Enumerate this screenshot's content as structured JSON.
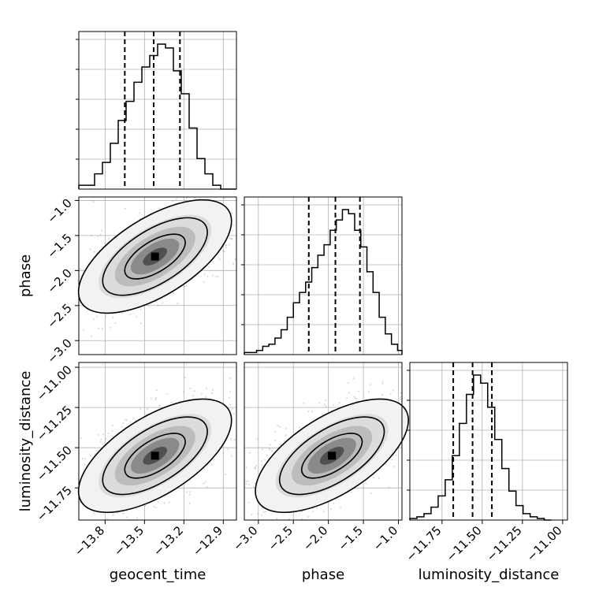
{
  "chart_data": {
    "type": "corner",
    "parameters": [
      {
        "name": "geocent_time",
        "label": "geocent_time",
        "range": [
          -14.0,
          -12.8
        ],
        "ticks": [
          -13.8,
          -13.5,
          -13.2,
          -12.9
        ],
        "tick_labels": [
          "−13.8",
          "−13.5",
          "−13.2",
          "−12.9"
        ],
        "quantiles": [
          -13.65,
          -13.43,
          -13.23
        ],
        "histogram": {
          "bin_edges": [
            -14.0,
            -13.94,
            -13.88,
            -13.82,
            -13.76,
            -13.7,
            -13.64,
            -13.58,
            -13.52,
            -13.46,
            -13.4,
            -13.34,
            -13.28,
            -13.22,
            -13.16,
            -13.1,
            -13.04,
            -12.98,
            -12.92,
            -12.86,
            -12.8
          ],
          "counts": [
            1,
            1,
            4,
            7,
            12,
            18,
            23,
            28,
            32,
            35,
            38,
            37,
            31,
            25,
            16,
            8,
            4,
            1,
            0,
            0
          ]
        }
      },
      {
        "name": "phase",
        "label": "phase",
        "range": [
          -3.2,
          -0.95
        ],
        "ticks": [
          -3.0,
          -2.5,
          -2.0,
          -1.5,
          -1.0
        ],
        "tick_labels": [
          "−3.0",
          "−2.5",
          "−2.0",
          "−1.5",
          "−1.0"
        ],
        "quantiles": [
          -2.28,
          -1.9,
          -1.55
        ],
        "histogram": {
          "bin_edges": [
            -3.2,
            -3.1125,
            -3.025,
            -2.9375,
            -2.85,
            -2.7625,
            -2.675,
            -2.5875,
            -2.5,
            -2.4125,
            -2.325,
            -2.2375,
            -2.15,
            -2.0625,
            -1.975,
            -1.8875,
            -1.8,
            -1.7125,
            -1.625,
            -1.5375,
            -1.45,
            -1.3625,
            -1.275,
            -1.1875,
            -1.1,
            -1.0125,
            -0.95
          ],
          "counts": [
            1,
            1,
            2,
            4,
            5,
            8,
            12,
            18,
            25,
            30,
            35,
            42,
            48,
            53,
            60,
            65,
            70,
            68,
            60,
            52,
            40,
            30,
            18,
            10,
            5,
            2
          ]
        }
      },
      {
        "name": "luminosity_distance",
        "label": "luminosity_distance",
        "range": [
          -11.95,
          -10.97
        ],
        "ticks": [
          -11.75,
          -11.5,
          -11.25,
          -11.0
        ],
        "tick_labels": [
          "−11.75",
          "−11.50",
          "−11.25",
          "−11.00"
        ],
        "quantiles": [
          -11.68,
          -11.56,
          -11.44
        ],
        "histogram": {
          "bin_edges": [
            -11.95,
            -11.906,
            -11.862,
            -11.818,
            -11.774,
            -11.73,
            -11.686,
            -11.642,
            -11.598,
            -11.554,
            -11.51,
            -11.466,
            -11.422,
            -11.378,
            -11.334,
            -11.29,
            -11.246,
            -11.202,
            -11.158,
            -11.114,
            -11.07
          ],
          "counts": [
            1,
            2,
            4,
            8,
            15,
            25,
            40,
            60,
            78,
            90,
            85,
            70,
            50,
            32,
            18,
            9,
            4,
            2,
            1,
            0
          ]
        }
      }
    ],
    "pairs": [
      {
        "x": "geocent_time",
        "y": "phase",
        "center": [
          -13.42,
          -1.8
        ]
      },
      {
        "x": "geocent_time",
        "y": "luminosity_distance",
        "center": [
          -13.42,
          -11.55
        ]
      },
      {
        "x": "phase",
        "y": "luminosity_distance",
        "center": [
          -1.95,
          -11.55
        ]
      }
    ],
    "grid": true,
    "line_color": "#000000",
    "density_colormap": "greys"
  }
}
